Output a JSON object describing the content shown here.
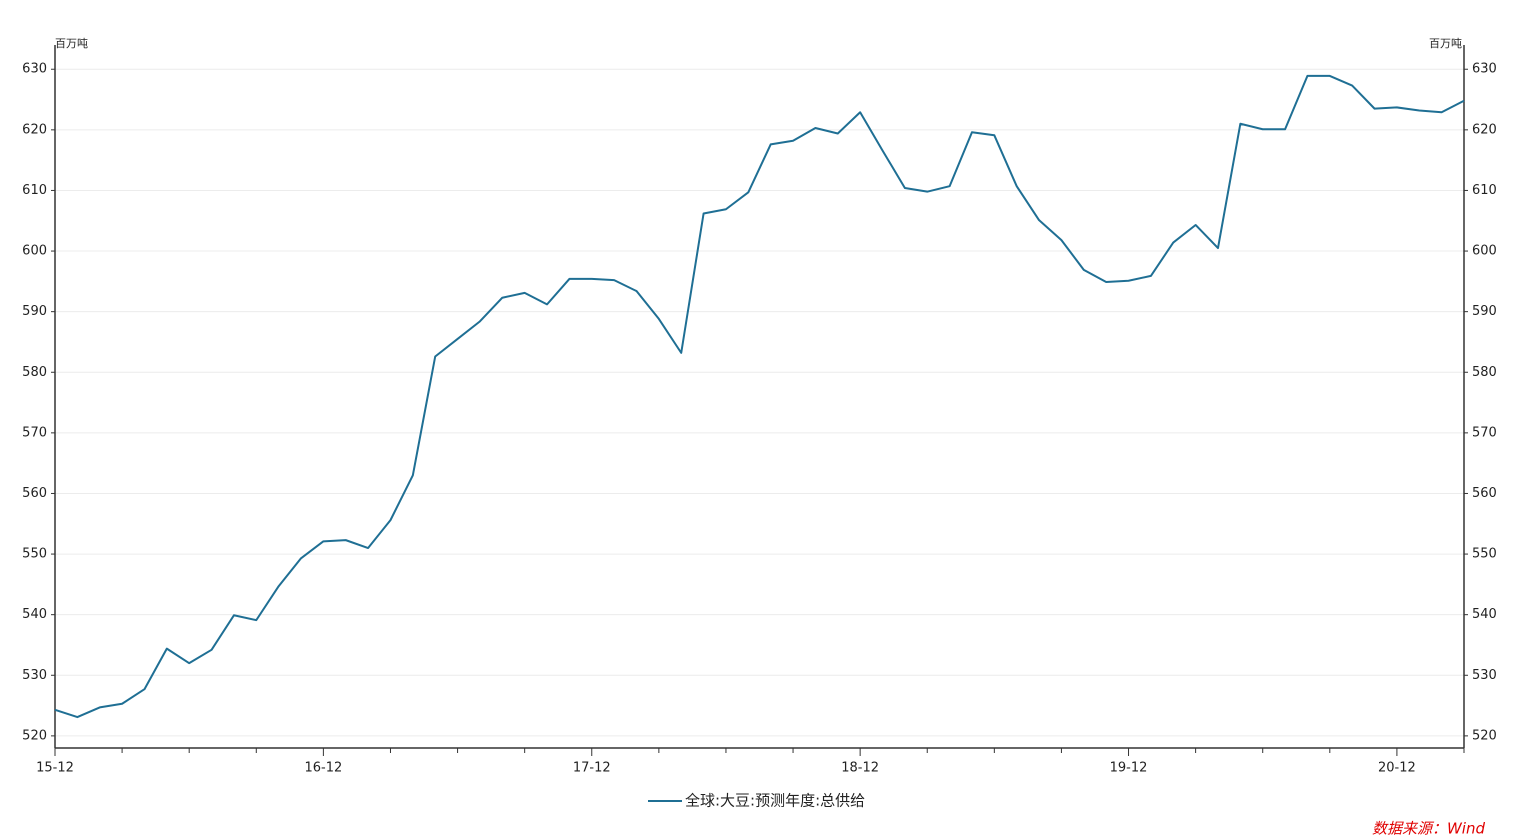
{
  "chart_data": {
    "type": "line",
    "y_unit": "百万吨",
    "y2_unit": "百万吨",
    "categories": [
      "15-12",
      null,
      null,
      null,
      null,
      null,
      null,
      null,
      null,
      null,
      null,
      null,
      "16-12",
      null,
      null,
      null,
      null,
      null,
      null,
      null,
      null,
      null,
      null,
      null,
      "17-12",
      null,
      null,
      null,
      null,
      null,
      null,
      null,
      null,
      null,
      null,
      null,
      "18-12",
      null,
      null,
      null,
      null,
      null,
      null,
      null,
      null,
      null,
      null,
      null,
      "19-12",
      null,
      null,
      null,
      null,
      null,
      null,
      null,
      null,
      null,
      null,
      null,
      "20-12",
      null,
      null,
      null
    ],
    "series": [
      {
        "name": "全球:大豆:预测年度:总供给",
        "color": "#1f6f94",
        "values": [
          524.3,
          523.1,
          524.7,
          525.3,
          527.7,
          534.4,
          532.0,
          534.2,
          539.9,
          539.1,
          544.7,
          549.3,
          552.1,
          552.3,
          551.0,
          555.6,
          563.0,
          582.6,
          585.5,
          588.4,
          592.3,
          593.1,
          591.2,
          595.4,
          595.4,
          595.2,
          593.4,
          588.8,
          583.2,
          606.2,
          606.9,
          609.7,
          617.6,
          618.2,
          620.3,
          619.4,
          622.9,
          616.6,
          610.4,
          609.8,
          610.7,
          619.6,
          619.1,
          610.7,
          605.1,
          601.8,
          596.9,
          594.9,
          595.1,
          595.9,
          601.4,
          604.3,
          600.5,
          621.0,
          620.1,
          620.1,
          628.9,
          628.9,
          627.3,
          623.5,
          623.7,
          623.2,
          622.9,
          624.8
        ]
      }
    ],
    "ylim": [
      518,
      634
    ],
    "yticks": [
      520,
      530,
      540,
      550,
      560,
      570,
      580,
      590,
      600,
      610,
      620,
      630
    ],
    "y2lim": [
      518,
      634
    ],
    "y2ticks": [
      520,
      530,
      540,
      550,
      560,
      570,
      580,
      590,
      600,
      610,
      620,
      630
    ],
    "grid": true,
    "legend": "bottom",
    "source": "数据来源：Wind"
  }
}
